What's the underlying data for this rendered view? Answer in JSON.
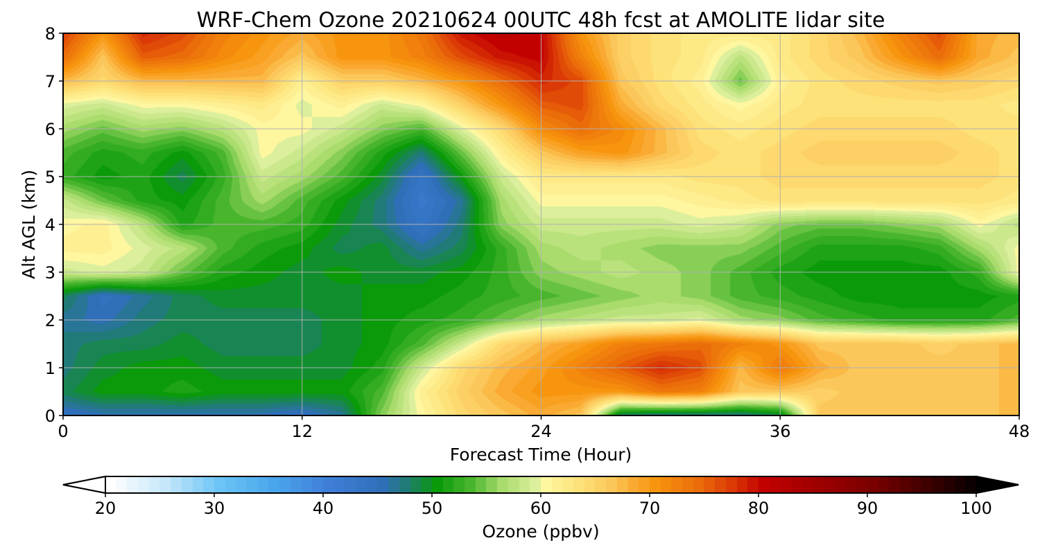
{
  "chart_data": {
    "type": "heatmap",
    "title": "WRF-Chem Ozone  20210624 00UTC 48h fcst at AMOLITE lidar site",
    "xlabel": "Forecast Time (Hour)",
    "ylabel": "Alt AGL (km)",
    "xlim": [
      0,
      48
    ],
    "ylim": [
      0,
      8
    ],
    "x_ticks": [
      0,
      12,
      24,
      36,
      48
    ],
    "x_tick_labels": [
      "0",
      "12",
      "24",
      "36",
      "48"
    ],
    "y_ticks": [
      0,
      1,
      2,
      3,
      4,
      5,
      6,
      7,
      8
    ],
    "y_tick_labels": [
      "0",
      "1",
      "2",
      "3",
      "4",
      "5",
      "6",
      "7",
      "8"
    ],
    "grid": true,
    "x": [
      0,
      2,
      4,
      6,
      8,
      10,
      12,
      14,
      16,
      18,
      20,
      22,
      24,
      26,
      28,
      30,
      32,
      34,
      36,
      38,
      40,
      42,
      44,
      46,
      48
    ],
    "y": [
      0,
      0.5,
      1,
      1.5,
      2,
      2.5,
      3,
      3.5,
      4,
      4.5,
      5,
      5.5,
      6,
      6.5,
      7,
      7.5,
      8
    ],
    "z": [
      [
        44,
        45,
        45,
        45,
        45,
        45,
        44,
        46,
        55,
        60,
        64,
        66,
        68,
        66,
        47,
        46,
        46,
        46,
        48,
        66,
        66,
        66,
        66,
        66,
        67
      ],
      [
        48,
        50,
        50,
        51,
        50,
        50,
        50,
        50,
        53,
        61,
        65,
        68,
        70,
        70,
        70,
        73,
        72,
        66,
        66,
        65,
        66,
        66,
        66,
        66,
        67
      ],
      [
        47,
        49,
        50,
        50,
        49,
        49,
        49,
        49,
        51,
        58,
        64,
        67,
        69,
        72,
        75,
        78,
        76,
        67,
        73,
        68,
        66,
        66,
        66,
        66,
        67
      ],
      [
        47,
        48,
        48,
        49,
        48,
        48,
        48,
        49,
        50,
        53,
        58,
        64,
        67,
        69,
        72,
        73,
        74,
        72,
        70,
        66,
        66,
        66,
        65,
        66,
        67
      ],
      [
        46,
        45,
        47,
        48,
        48,
        48,
        48,
        49,
        50,
        51,
        52,
        54,
        56,
        57,
        58,
        58,
        59,
        56,
        55,
        53,
        52,
        51,
        51,
        51,
        53
      ],
      [
        48,
        44,
        46,
        48,
        49,
        49,
        49,
        49,
        50,
        50,
        51,
        52,
        53,
        54,
        55,
        56,
        55,
        53,
        52,
        51,
        50,
        50,
        50,
        50,
        51
      ],
      [
        58,
        59,
        58,
        54,
        51,
        50,
        49,
        50,
        49,
        49,
        50,
        52,
        55,
        56,
        57,
        56,
        55,
        53,
        51,
        50,
        50,
        50,
        50,
        52,
        60
      ],
      [
        61,
        61,
        59,
        57,
        53,
        51,
        50,
        48,
        49,
        46,
        48,
        52,
        56,
        57,
        56,
        55,
        55,
        55,
        53,
        51,
        51,
        51,
        52,
        56,
        60
      ],
      [
        60,
        61,
        57,
        51,
        53,
        53,
        52,
        49,
        47,
        43,
        47,
        55,
        58,
        58,
        58,
        58,
        59,
        58,
        55,
        54,
        54,
        55,
        56,
        60,
        57
      ],
      [
        58,
        54,
        51,
        50,
        53,
        56,
        53,
        50,
        47,
        42,
        46,
        56,
        60,
        60,
        60,
        60,
        61,
        62,
        63,
        63,
        63,
        63,
        63,
        63,
        62
      ],
      [
        52,
        50,
        51,
        48,
        52,
        58,
        56,
        53,
        49,
        43,
        50,
        58,
        62,
        62,
        62,
        62,
        63,
        63,
        64,
        64,
        64,
        64,
        64,
        64,
        63
      ],
      [
        53,
        51,
        52,
        50,
        53,
        60,
        58,
        55,
        51,
        47,
        54,
        61,
        66,
        69,
        70,
        67,
        64,
        63,
        64,
        65,
        65,
        65,
        65,
        64,
        63
      ],
      [
        56,
        54,
        56,
        55,
        57,
        60,
        60,
        58,
        55,
        53,
        59,
        64,
        71,
        74,
        71,
        67,
        63,
        62,
        63,
        64,
        64,
        64,
        64,
        63,
        63
      ],
      [
        59,
        58,
        60,
        60,
        61,
        62,
        59,
        61,
        58,
        60,
        65,
        70,
        75,
        76,
        68,
        64,
        62,
        60,
        62,
        63,
        63,
        63,
        63,
        63,
        62
      ],
      [
        67,
        64,
        67,
        67,
        67,
        67,
        61,
        65,
        65,
        67,
        70,
        74,
        78,
        76,
        66,
        63,
        61,
        54,
        61,
        63,
        64,
        65,
        66,
        65,
        64
      ],
      [
        74,
        66,
        75,
        74,
        71,
        69,
        66,
        70,
        70,
        72,
        76,
        79,
        80,
        72,
        65,
        63,
        62,
        57,
        62,
        64,
        66,
        70,
        74,
        68,
        66
      ],
      [
        77,
        70,
        78,
        76,
        72,
        70,
        68,
        70,
        70,
        73,
        79,
        81,
        80,
        70,
        65,
        63,
        62,
        62,
        62,
        64,
        67,
        72,
        76,
        68,
        67
      ]
    ],
    "colorbar": {
      "label": "Ozone  (ppbv)",
      "min": 20,
      "max": 100,
      "ticks": [
        20,
        30,
        40,
        50,
        60,
        70,
        80,
        90,
        100
      ],
      "tick_labels": [
        "20",
        "30",
        "40",
        "50",
        "60",
        "70",
        "80",
        "90",
        "100"
      ],
      "extend": "both",
      "stops": [
        {
          "v": 20,
          "c": "#ffffff"
        },
        {
          "v": 25,
          "c": "#c6e7fa"
        },
        {
          "v": 30,
          "c": "#6bc4f5"
        },
        {
          "v": 35,
          "c": "#4aa6ec"
        },
        {
          "v": 40,
          "c": "#3f7ed8"
        },
        {
          "v": 45,
          "c": "#2f6fb8"
        },
        {
          "v": 47,
          "c": "#207a78"
        },
        {
          "v": 50,
          "c": "#0a9a0a"
        },
        {
          "v": 53,
          "c": "#48b52d"
        },
        {
          "v": 56,
          "c": "#a9dc6c"
        },
        {
          "v": 59,
          "c": "#dcef9c"
        },
        {
          "v": 60,
          "c": "#fff6a0"
        },
        {
          "v": 63,
          "c": "#fde27a"
        },
        {
          "v": 66,
          "c": "#fcc75a"
        },
        {
          "v": 68,
          "c": "#faaa32"
        },
        {
          "v": 70,
          "c": "#f7950e"
        },
        {
          "v": 74,
          "c": "#eb6d0a"
        },
        {
          "v": 77,
          "c": "#db3a06"
        },
        {
          "v": 80,
          "c": "#c20000"
        },
        {
          "v": 85,
          "c": "#9e0000"
        },
        {
          "v": 90,
          "c": "#7a0000"
        },
        {
          "v": 95,
          "c": "#3e0000"
        },
        {
          "v": 100,
          "c": "#000000"
        }
      ]
    }
  }
}
